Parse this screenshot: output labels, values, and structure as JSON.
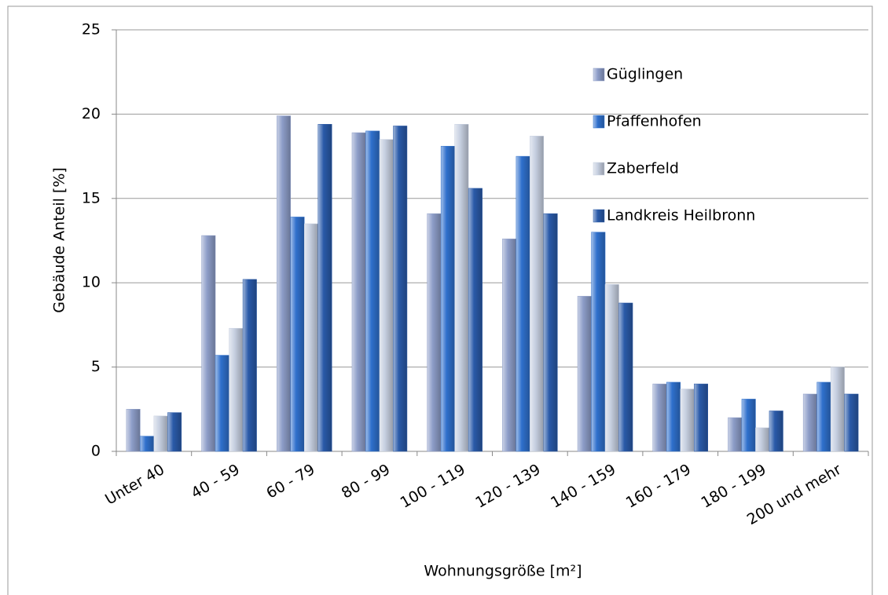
{
  "chart_data": {
    "type": "bar",
    "xlabel": "Wohnungsgröße [m²]",
    "ylabel": "Gebäude Anteil [%]",
    "categories": [
      "Unter 40",
      "40 - 59",
      "60 - 79",
      "80 - 99",
      "100 - 119",
      "120 - 139",
      "140 - 159",
      "160 - 179",
      "180 - 199",
      "200 und mehr"
    ],
    "series": [
      {
        "name": "Güglingen",
        "color": "#8d9dc8",
        "values": [
          2.5,
          12.8,
          19.9,
          18.9,
          14.1,
          12.6,
          9.2,
          4.0,
          2.0,
          3.4
        ]
      },
      {
        "name": "Pfaffenhofen",
        "color": "#2f70cc",
        "values": [
          0.9,
          5.7,
          13.9,
          19.0,
          18.1,
          17.5,
          13.0,
          4.1,
          3.1,
          4.1
        ]
      },
      {
        "name": "Zaberfeld",
        "color": "#c6cfe0",
        "values": [
          2.1,
          7.3,
          13.5,
          18.5,
          19.4,
          18.7,
          9.9,
          3.7,
          1.4,
          5.0
        ]
      },
      {
        "name": "Landkreis Heilbronn",
        "color": "#2a5aa8",
        "values": [
          2.3,
          10.2,
          19.4,
          19.3,
          15.6,
          14.1,
          8.8,
          4.0,
          2.4,
          3.4
        ]
      }
    ],
    "ylim": [
      0,
      25
    ],
    "yticks": [
      0,
      5,
      10,
      15,
      20,
      25
    ],
    "grid": true,
    "legend": "top-right"
  }
}
